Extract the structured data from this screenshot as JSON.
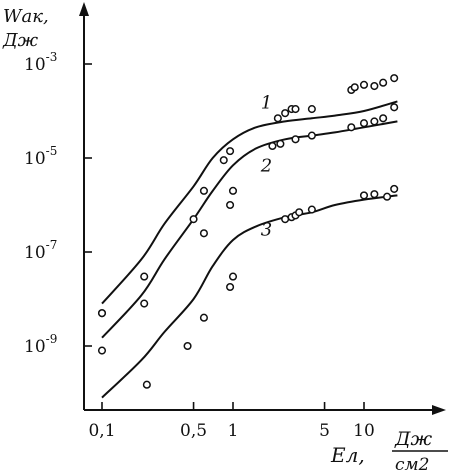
{
  "chart_data": {
    "type": "scatter",
    "title": "",
    "xlabel": {
      "symbol": "Eл,",
      "unit_num": "Дж",
      "unit_den": "см2"
    },
    "ylabel": {
      "symbol": "Wак,",
      "unit": "Дж"
    },
    "x_scale": "log",
    "y_scale": "log",
    "xlim": [
      0.075,
      22
    ],
    "ylim": [
      1e-11,
      0.002
    ],
    "x_ticks": [
      {
        "value": 0.1,
        "label": "0,1"
      },
      {
        "value": 0.5,
        "label": "0,5"
      },
      {
        "value": 1,
        "label": "1"
      },
      {
        "value": 5,
        "label": "5"
      },
      {
        "value": 10,
        "label": "10"
      }
    ],
    "y_ticks": [
      {
        "value": 0.001,
        "base": "10",
        "exp": "-3"
      },
      {
        "value": 1e-05,
        "base": "10",
        "exp": "-5"
      },
      {
        "value": 1e-07,
        "base": "10",
        "exp": "-7"
      },
      {
        "value": 1e-09,
        "base": "10",
        "exp": "-9"
      }
    ],
    "grid": false,
    "series": [
      {
        "label": "1",
        "label_at": [
          1.6,
          0.00015
        ],
        "curve": [
          [
            0.1,
            8e-09
          ],
          [
            0.2,
            7e-08
          ],
          [
            0.3,
            4e-07
          ],
          [
            0.5,
            2.5e-06
          ],
          [
            0.7,
            1e-05
          ],
          [
            1.0,
            2.5e-05
          ],
          [
            1.5,
            4.5e-05
          ],
          [
            2.5,
            6e-05
          ],
          [
            4.0,
            7e-05
          ],
          [
            6.0,
            8e-05
          ],
          [
            10.0,
            0.0001
          ],
          [
            18.0,
            0.00016
          ]
        ],
        "points": [
          [
            0.1,
            5e-09
          ],
          [
            0.21,
            3e-08
          ],
          [
            0.6,
            2e-06
          ],
          [
            0.85,
            9e-06
          ],
          [
            0.95,
            1.4e-05
          ],
          [
            2.2,
            7e-05
          ],
          [
            2.5,
            9e-05
          ],
          [
            2.8,
            0.00011
          ],
          [
            3.0,
            0.00011
          ],
          [
            4.0,
            0.00011
          ],
          [
            8.0,
            0.00028
          ],
          [
            8.5,
            0.00032
          ],
          [
            10.0,
            0.00036
          ],
          [
            12.0,
            0.00034
          ],
          [
            14.0,
            0.0004
          ],
          [
            17.0,
            0.0005
          ]
        ]
      },
      {
        "label": "2",
        "label_at": [
          1.6,
          7e-06
        ],
        "curve": [
          [
            0.1,
            1.5e-09
          ],
          [
            0.2,
            1.2e-08
          ],
          [
            0.3,
            7e-08
          ],
          [
            0.5,
            5e-07
          ],
          [
            0.7,
            2e-06
          ],
          [
            1.0,
            7e-06
          ],
          [
            1.5,
            1.6e-05
          ],
          [
            2.5,
            2.5e-05
          ],
          [
            4.0,
            3e-05
          ],
          [
            6.0,
            3.5e-05
          ],
          [
            10.0,
            4.5e-05
          ],
          [
            18.0,
            6e-05
          ]
        ],
        "points": [
          [
            0.1,
            5e-09
          ],
          [
            0.21,
            8e-09
          ],
          [
            0.5,
            5e-07
          ],
          [
            0.6,
            2.5e-07
          ],
          [
            0.95,
            1e-06
          ],
          [
            1.0,
            2e-06
          ],
          [
            2.0,
            1.8e-05
          ],
          [
            2.3,
            2e-05
          ],
          [
            3.0,
            2.5e-05
          ],
          [
            4.0,
            3e-05
          ],
          [
            8.0,
            4.5e-05
          ],
          [
            10.0,
            5.5e-05
          ],
          [
            12.0,
            6e-05
          ],
          [
            14.0,
            7e-05
          ],
          [
            17.0,
            0.00012
          ]
        ]
      },
      {
        "label": "3",
        "label_at": [
          1.6,
          3e-07
        ],
        "curve": [
          [
            0.1,
            8e-11
          ],
          [
            0.2,
            5e-10
          ],
          [
            0.3,
            2e-09
          ],
          [
            0.5,
            1e-08
          ],
          [
            0.7,
            5e-08
          ],
          [
            1.0,
            1.8e-07
          ],
          [
            1.5,
            3.5e-07
          ],
          [
            2.5,
            5.5e-07
          ],
          [
            4.0,
            7e-07
          ],
          [
            6.0,
            1e-06
          ],
          [
            10.0,
            1.3e-06
          ],
          [
            18.0,
            1.6e-06
          ]
        ],
        "points": [
          [
            0.1,
            8e-10
          ],
          [
            0.22,
            1.5e-10
          ],
          [
            0.45,
            1e-09
          ],
          [
            0.6,
            4e-09
          ],
          [
            0.95,
            1.8e-08
          ],
          [
            1.0,
            3e-08
          ],
          [
            2.5,
            5e-07
          ],
          [
            2.8,
            5.5e-07
          ],
          [
            3.0,
            6e-07
          ],
          [
            3.2,
            7e-07
          ],
          [
            4.0,
            8e-07
          ],
          [
            10.0,
            1.6e-06
          ],
          [
            12.0,
            1.7e-06
          ],
          [
            15.0,
            1.5e-06
          ],
          [
            17.0,
            2.2e-06
          ]
        ]
      }
    ]
  }
}
